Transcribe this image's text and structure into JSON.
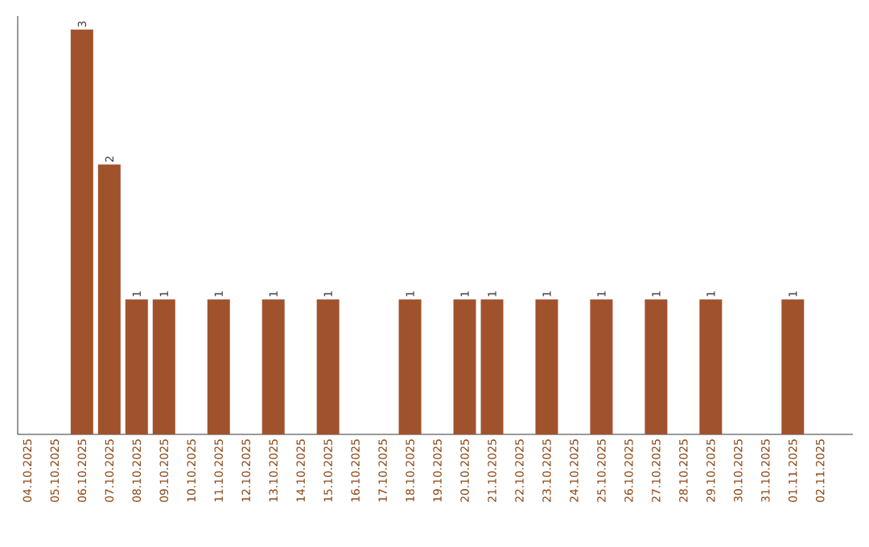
{
  "chart_data": {
    "type": "bar",
    "categories": [
      "04.10.2025",
      "05.10.2025",
      "06.10.2025",
      "07.10.2025",
      "08.10.2025",
      "09.10.2025",
      "10.10.2025",
      "11.10.2025",
      "12.10.2025",
      "13.10.2025",
      "14.10.2025",
      "15.10.2025",
      "16.10.2025",
      "17.10.2025",
      "18.10.2025",
      "19.10.2025",
      "20.10.2025",
      "21.10.2025",
      "22.10.2025",
      "23.10.2025",
      "24.10.2025",
      "25.10.2025",
      "26.10.2025",
      "27.10.2025",
      "28.10.2025",
      "29.10.2025",
      "30.10.2025",
      "31.10.2025",
      "01.11.2025",
      "02.11.2025"
    ],
    "values": [
      0,
      0,
      3,
      2,
      1,
      1,
      0,
      1,
      0,
      1,
      0,
      1,
      0,
      0,
      1,
      0,
      1,
      1,
      0,
      1,
      0,
      1,
      0,
      1,
      0,
      1,
      0,
      0,
      1,
      0
    ],
    "value_labels": [
      null,
      null,
      "3",
      "2",
      "1",
      "1",
      null,
      "1",
      null,
      "1",
      null,
      "1",
      null,
      null,
      "1",
      null,
      "1",
      "1",
      null,
      "1",
      null,
      "1",
      null,
      "1",
      null,
      "1",
      null,
      null,
      "1",
      null
    ],
    "color": "#a0522d",
    "ylim": [
      0,
      3.1
    ],
    "tick_labels": "x",
    "grid": false
  }
}
